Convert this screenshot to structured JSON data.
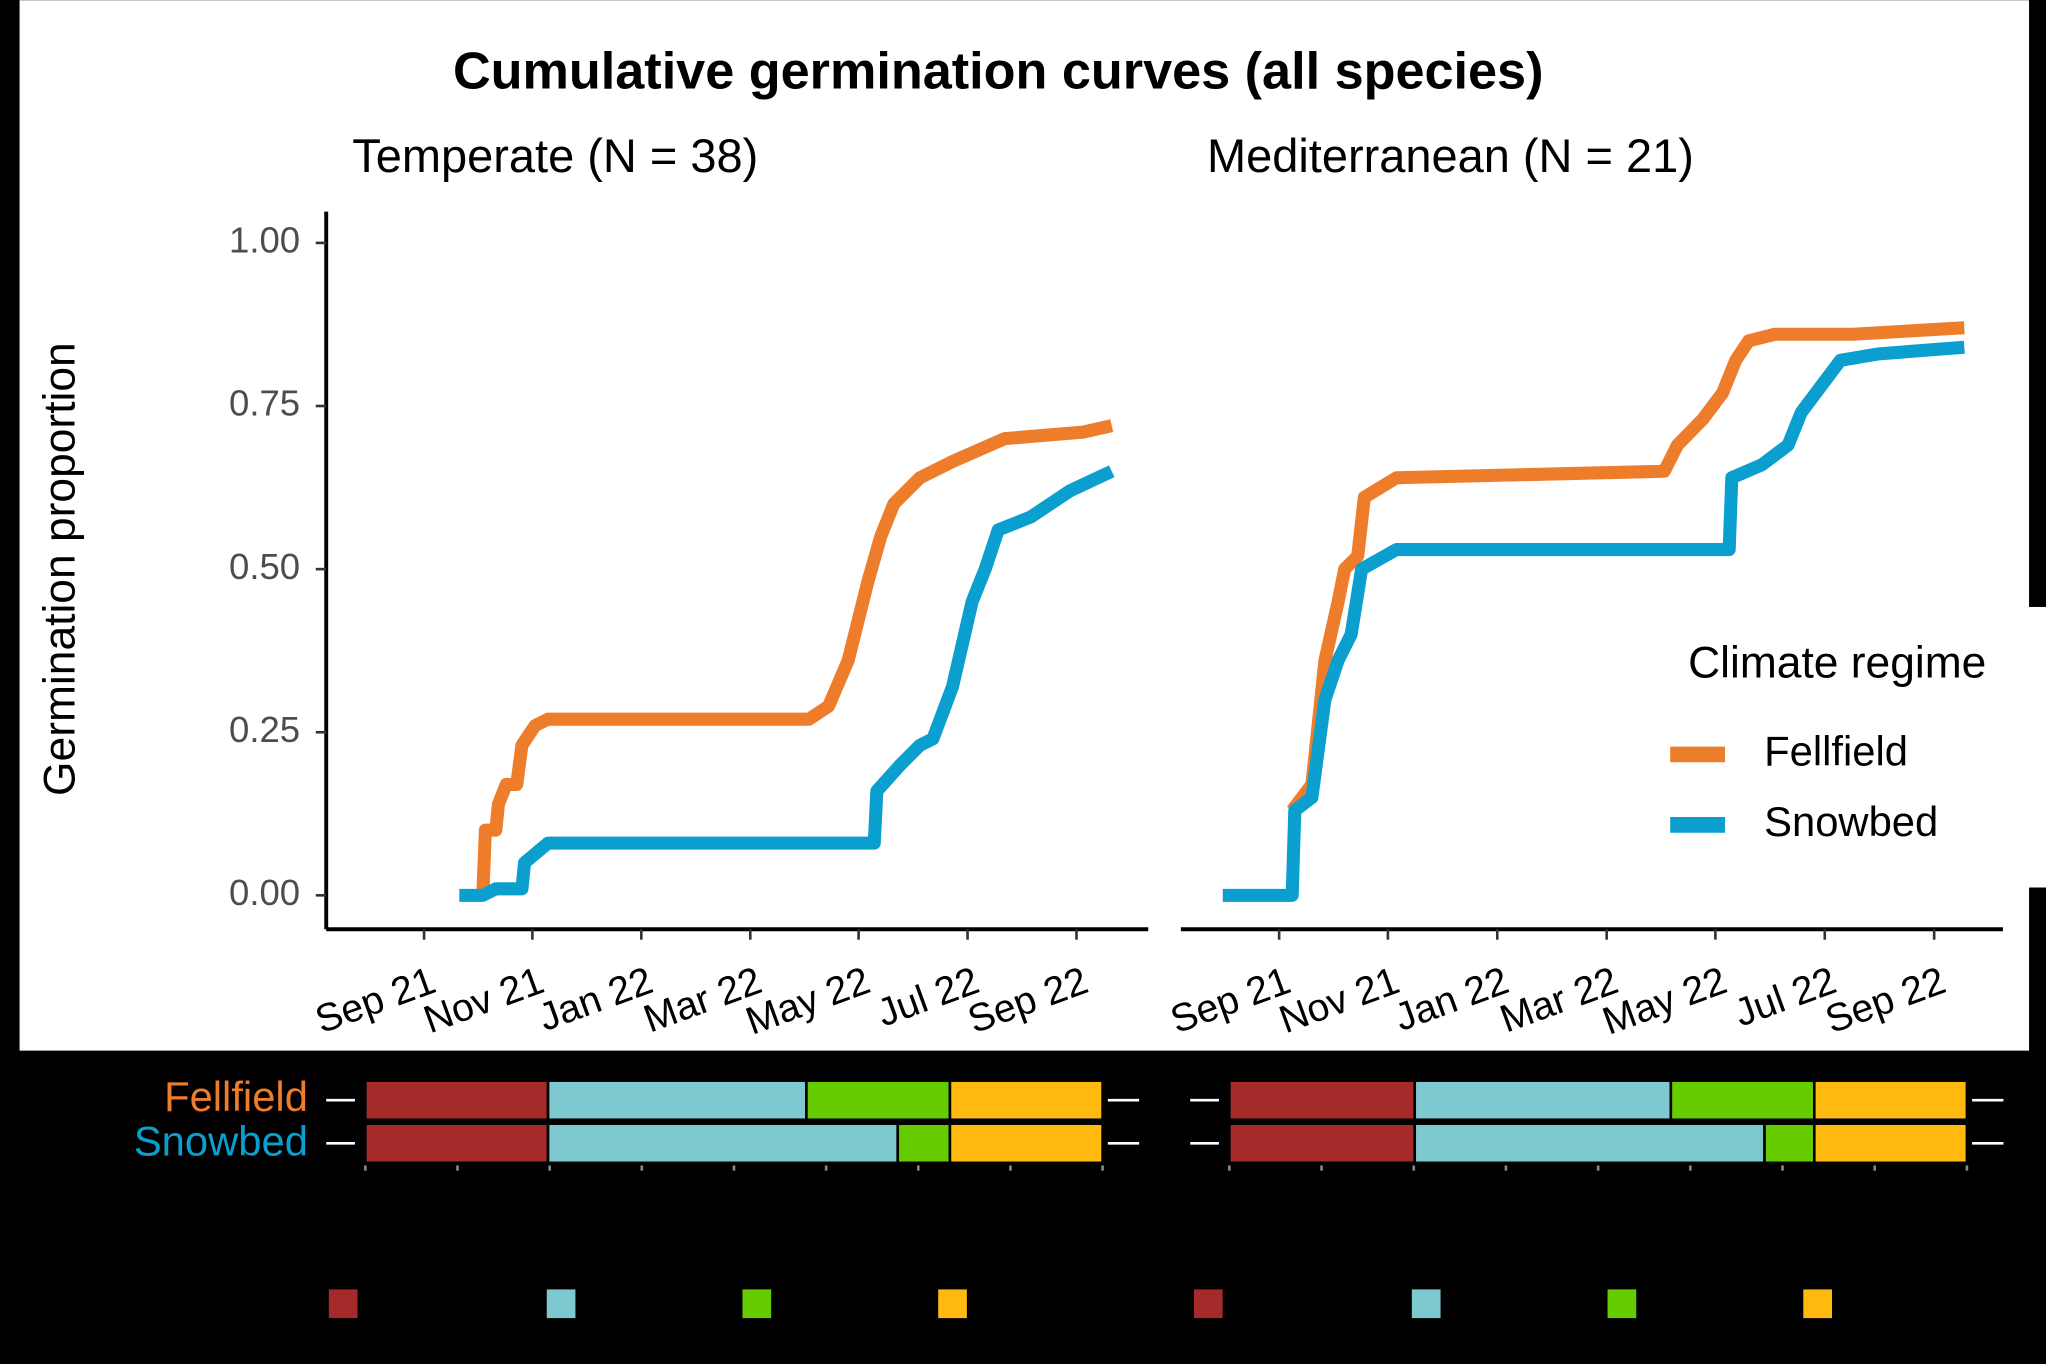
{
  "title": "Cumulative germination curves (all species)",
  "y_label": "Germination proportion",
  "legend": {
    "title": "Climate regime",
    "entries": [
      {
        "name": "Fellfield",
        "color": "#ee7d2b"
      },
      {
        "name": "Snowbed",
        "color": "#0b9fd0"
      }
    ]
  },
  "chart_data": [
    {
      "type": "line",
      "subtitle": "Temperate (N = 38)",
      "xlim": [
        2021.517,
        2022.777
      ],
      "ylim": [
        -0.052,
        1.048
      ],
      "xticks": [
        {
          "value": 2021.667,
          "label": "Sep 21"
        },
        {
          "value": 2021.833,
          "label": "Nov 21"
        },
        {
          "value": 2022.0,
          "label": "Jan 22"
        },
        {
          "value": 2022.167,
          "label": "Mar 22"
        },
        {
          "value": 2022.333,
          "label": "May 22"
        },
        {
          "value": 2022.5,
          "label": "Jul 22"
        },
        {
          "value": 2022.667,
          "label": "Sep 22"
        }
      ],
      "yticks": [
        {
          "value": 0,
          "label": "0.00"
        },
        {
          "value": 0.25,
          "label": "0.25"
        },
        {
          "value": 0.5,
          "label": "0.50"
        },
        {
          "value": 0.75,
          "label": "0.75"
        },
        {
          "value": 1,
          "label": "1.00"
        }
      ],
      "series": [
        {
          "color": "#ee7d2b",
          "x": [
            2021.757,
            2021.761,
            2021.777,
            2021.781,
            2021.793,
            2021.809,
            2021.817,
            2021.837,
            2021.857,
            2022.257,
            2022.287,
            2022.317,
            2022.347,
            2022.367,
            2022.387,
            2022.427,
            2022.477,
            2022.557,
            2022.677,
            2022.721
          ],
          "values": [
            0,
            0.1,
            0.1,
            0.14,
            0.17,
            0.17,
            0.23,
            0.26,
            0.27,
            0.27,
            0.29,
            0.36,
            0.48,
            0.55,
            0.6,
            0.64,
            0.665,
            0.7,
            0.71,
            0.72
          ]
        },
        {
          "color": "#0b9fd0",
          "x": [
            2021.721,
            2021.757,
            2021.777,
            2021.817,
            2021.821,
            2021.857,
            2022.357,
            2022.361,
            2022.397,
            2022.427,
            2022.447,
            2022.477,
            2022.507,
            2022.527,
            2022.547,
            2022.597,
            2022.657,
            2022.721
          ],
          "values": [
            0,
            0,
            0.01,
            0.01,
            0.05,
            0.08,
            0.08,
            0.16,
            0.2,
            0.23,
            0.24,
            0.32,
            0.45,
            0.5,
            0.56,
            0.58,
            0.62,
            0.65
          ]
        }
      ],
      "phases": [
        {
          "segments": [
            {
              "start": 2021.577,
              "end": 2021.857,
              "color": "#a52a2a"
            },
            {
              "start": 2021.857,
              "end": 2022.253,
              "color": "#7ec8d0"
            },
            {
              "start": 2022.253,
              "end": 2022.473,
              "color": "#66cc00"
            },
            {
              "start": 2022.473,
              "end": 2022.707,
              "color": "#ffb90f"
            }
          ]
        },
        {
          "segments": [
            {
              "start": 2021.577,
              "end": 2021.857,
              "color": "#a52a2a"
            },
            {
              "start": 2021.857,
              "end": 2022.393,
              "color": "#7ec8d0"
            },
            {
              "start": 2022.393,
              "end": 2022.473,
              "color": "#66cc00"
            },
            {
              "start": 2022.473,
              "end": 2022.707,
              "color": "#ffb90f"
            }
          ]
        }
      ]
    },
    {
      "type": "line",
      "subtitle": "Mediterranean (N = 21)",
      "xlim": [
        2021.517,
        2022.772
      ],
      "ylim": [
        -0.052,
        1.048
      ],
      "xticks": [
        {
          "value": 2021.667,
          "label": "Sep 21"
        },
        {
          "value": 2021.833,
          "label": "Nov 21"
        },
        {
          "value": 2022.0,
          "label": "Jan 22"
        },
        {
          "value": 2022.167,
          "label": "Mar 22"
        },
        {
          "value": 2022.333,
          "label": "May 22"
        },
        {
          "value": 2022.5,
          "label": "Jul 22"
        },
        {
          "value": 2022.667,
          "label": "Sep 22"
        }
      ],
      "series": [
        {
          "color": "#ee7d2b",
          "x": [
            2021.687,
            2021.717,
            2021.737,
            2021.757,
            2021.767,
            2021.787,
            2021.797,
            2021.846,
            2022.255,
            2022.275,
            2022.314,
            2022.344,
            2022.364,
            2022.384,
            2022.424,
            2022.543,
            2022.713
          ],
          "values": [
            0.13,
            0.17,
            0.36,
            0.45,
            0.5,
            0.52,
            0.61,
            0.64,
            0.65,
            0.69,
            0.73,
            0.77,
            0.82,
            0.85,
            0.86,
            0.86,
            0.87
          ]
        },
        {
          "color": "#0b9fd0",
          "x": [
            2021.581,
            2021.687,
            2021.691,
            2021.717,
            2021.737,
            2021.757,
            2021.777,
            2021.793,
            2021.846,
            2022.354,
            2022.358,
            2022.404,
            2022.444,
            2022.464,
            2022.494,
            2022.524,
            2022.583,
            2022.713
          ],
          "values": [
            0,
            0,
            0.13,
            0.15,
            0.3,
            0.36,
            0.4,
            0.5,
            0.53,
            0.53,
            0.64,
            0.66,
            0.69,
            0.74,
            0.78,
            0.82,
            0.83,
            0.84
          ]
        }
      ],
      "phases": [
        {
          "segments": [
            {
              "start": 2021.591,
              "end": 2021.874,
              "color": "#a52a2a"
            },
            {
              "start": 2021.874,
              "end": 2022.265,
              "color": "#7ec8d0"
            },
            {
              "start": 2022.265,
              "end": 2022.484,
              "color": "#66cc00"
            },
            {
              "start": 2022.484,
              "end": 2022.717,
              "color": "#ffb90f"
            }
          ]
        },
        {
          "segments": [
            {
              "start": 2021.591,
              "end": 2021.874,
              "color": "#a52a2a"
            },
            {
              "start": 2021.874,
              "end": 2022.408,
              "color": "#7ec8d0"
            },
            {
              "start": 2022.408,
              "end": 2022.484,
              "color": "#66cc00"
            },
            {
              "start": 2022.484,
              "end": 2022.717,
              "color": "#ffb90f"
            }
          ]
        }
      ]
    }
  ]
}
